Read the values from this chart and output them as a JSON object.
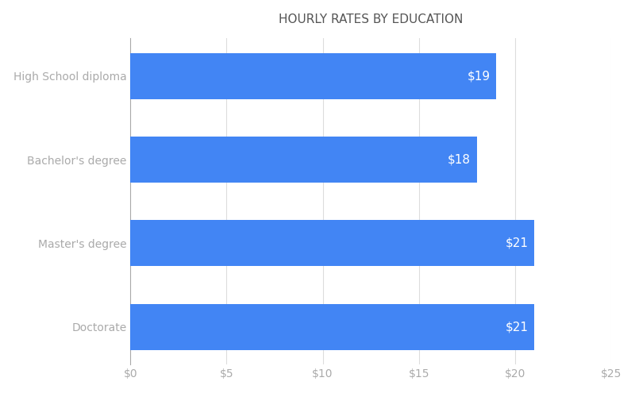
{
  "title": "HOURLY RATES BY EDUCATION",
  "categories": [
    "Doctorate",
    "Master's degree",
    "Bachelor's degree",
    "High School diploma"
  ],
  "values": [
    21,
    21,
    18,
    19
  ],
  "labels": [
    "$21",
    "$21",
    "$18",
    "$19"
  ],
  "bar_color": "#4285f4",
  "background_color": "#ffffff",
  "title_color": "#555555",
  "label_color": "#ffffff",
  "tick_color": "#aaaaaa",
  "grid_color": "#dddddd",
  "xlim": [
    0,
    25
  ],
  "xticks": [
    0,
    5,
    10,
    15,
    20,
    25
  ],
  "xtick_labels": [
    "$0",
    "$5",
    "$10",
    "$15",
    "$20",
    "$25"
  ],
  "bar_height": 0.55,
  "title_fontsize": 11,
  "label_fontsize": 11,
  "tick_fontsize": 10,
  "category_fontsize": 10
}
